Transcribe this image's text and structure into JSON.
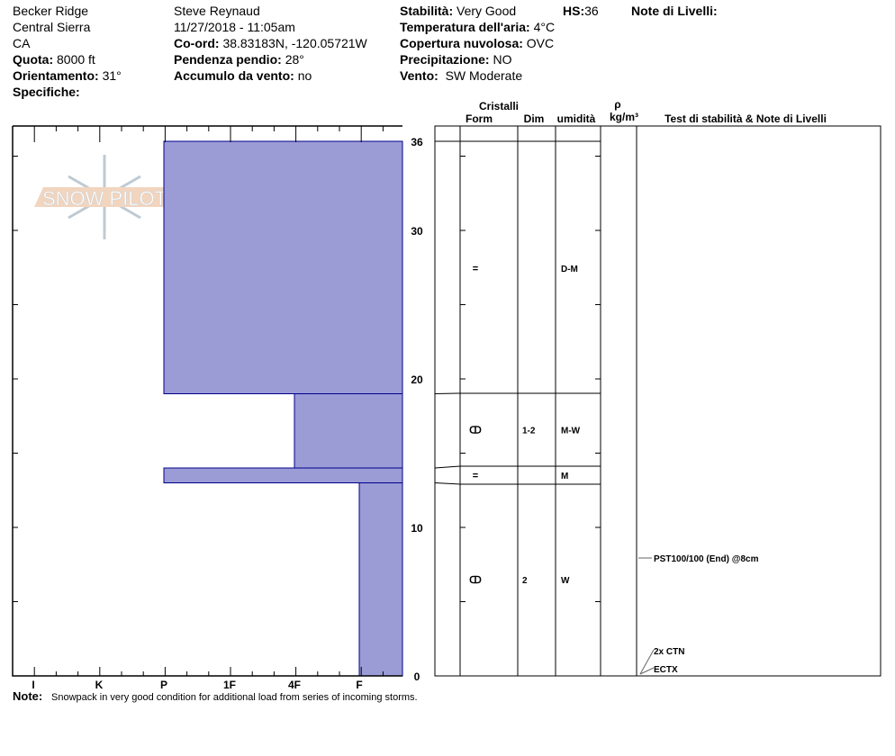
{
  "header": {
    "col1": {
      "location": "Becker Ridge",
      "range": "Central Sierra",
      "state": "CA",
      "elevation_label": "Quota:",
      "elevation": "8000 ft",
      "aspect_label": "Orientamento:",
      "aspect": "31°",
      "specifics_label": "Specifiche:"
    },
    "col2": {
      "observer": "Steve Reynaud",
      "datetime": "11/27/2018 - 11:05am",
      "coord_label": "Co-ord:",
      "coord": "38.83183N, -120.05721W",
      "slope_label": "Pendenza pendio:",
      "slope": "28°",
      "windload_label": "Accumulo da vento:",
      "windload": "no"
    },
    "col3": {
      "stability_label": "Stabilità:",
      "stability": "Very Good",
      "hs_label": "HS:",
      "hs": "36",
      "airtemp_label": "Temperatura dell'aria:",
      "airtemp": "4°C",
      "sky_label": "Copertura nuvolosa:",
      "sky": "OVC",
      "precip_label": "Precipitazione:",
      "precip": "NO",
      "wind_label": "Vento:",
      "wind": "SW Moderate"
    },
    "layer_notes_label": "Note di Livelli:"
  },
  "table_headers": {
    "crystals": "Cristalli",
    "form": "Form",
    "size": "Dim",
    "moisture": "umidità",
    "rho": "ρ",
    "density": "kg/m³",
    "tests": "Test di stabilità & Note di Livelli"
  },
  "logo_text": "SNOW PILOT",
  "hardness_labels": [
    "I",
    "K",
    "P",
    "1F",
    "4F",
    "F"
  ],
  "depth_labels": [
    "36",
    "30",
    "20",
    "10",
    "0"
  ],
  "colors": {
    "layer_fill": "#9b9bd6",
    "layer_stroke": "#00008b"
  },
  "layers": [
    {
      "top": 36,
      "bottom": 19,
      "hardness": "P",
      "form": "=",
      "size": "",
      "moisture": "D-M"
    },
    {
      "top": 19,
      "bottom": 14,
      "hardness": "4F",
      "form": "ↀ",
      "size": "1-2",
      "moisture": "M-W"
    },
    {
      "top": 14,
      "bottom": 13,
      "hardness": "P",
      "form": "=",
      "size": "",
      "moisture": "M"
    },
    {
      "top": 13,
      "bottom": 0,
      "hardness": "F",
      "form": "ↀ",
      "size": "2",
      "moisture": "W"
    }
  ],
  "tests": [
    {
      "depth": 8,
      "label": "PST100/100 (End) @8cm"
    },
    {
      "depth": 0,
      "label": "2x CTN"
    },
    {
      "depth": 0,
      "label": "ECTX"
    }
  ],
  "note_label": "Note:",
  "note": "Snowpack in very good condition for additional load from series of incoming storms."
}
